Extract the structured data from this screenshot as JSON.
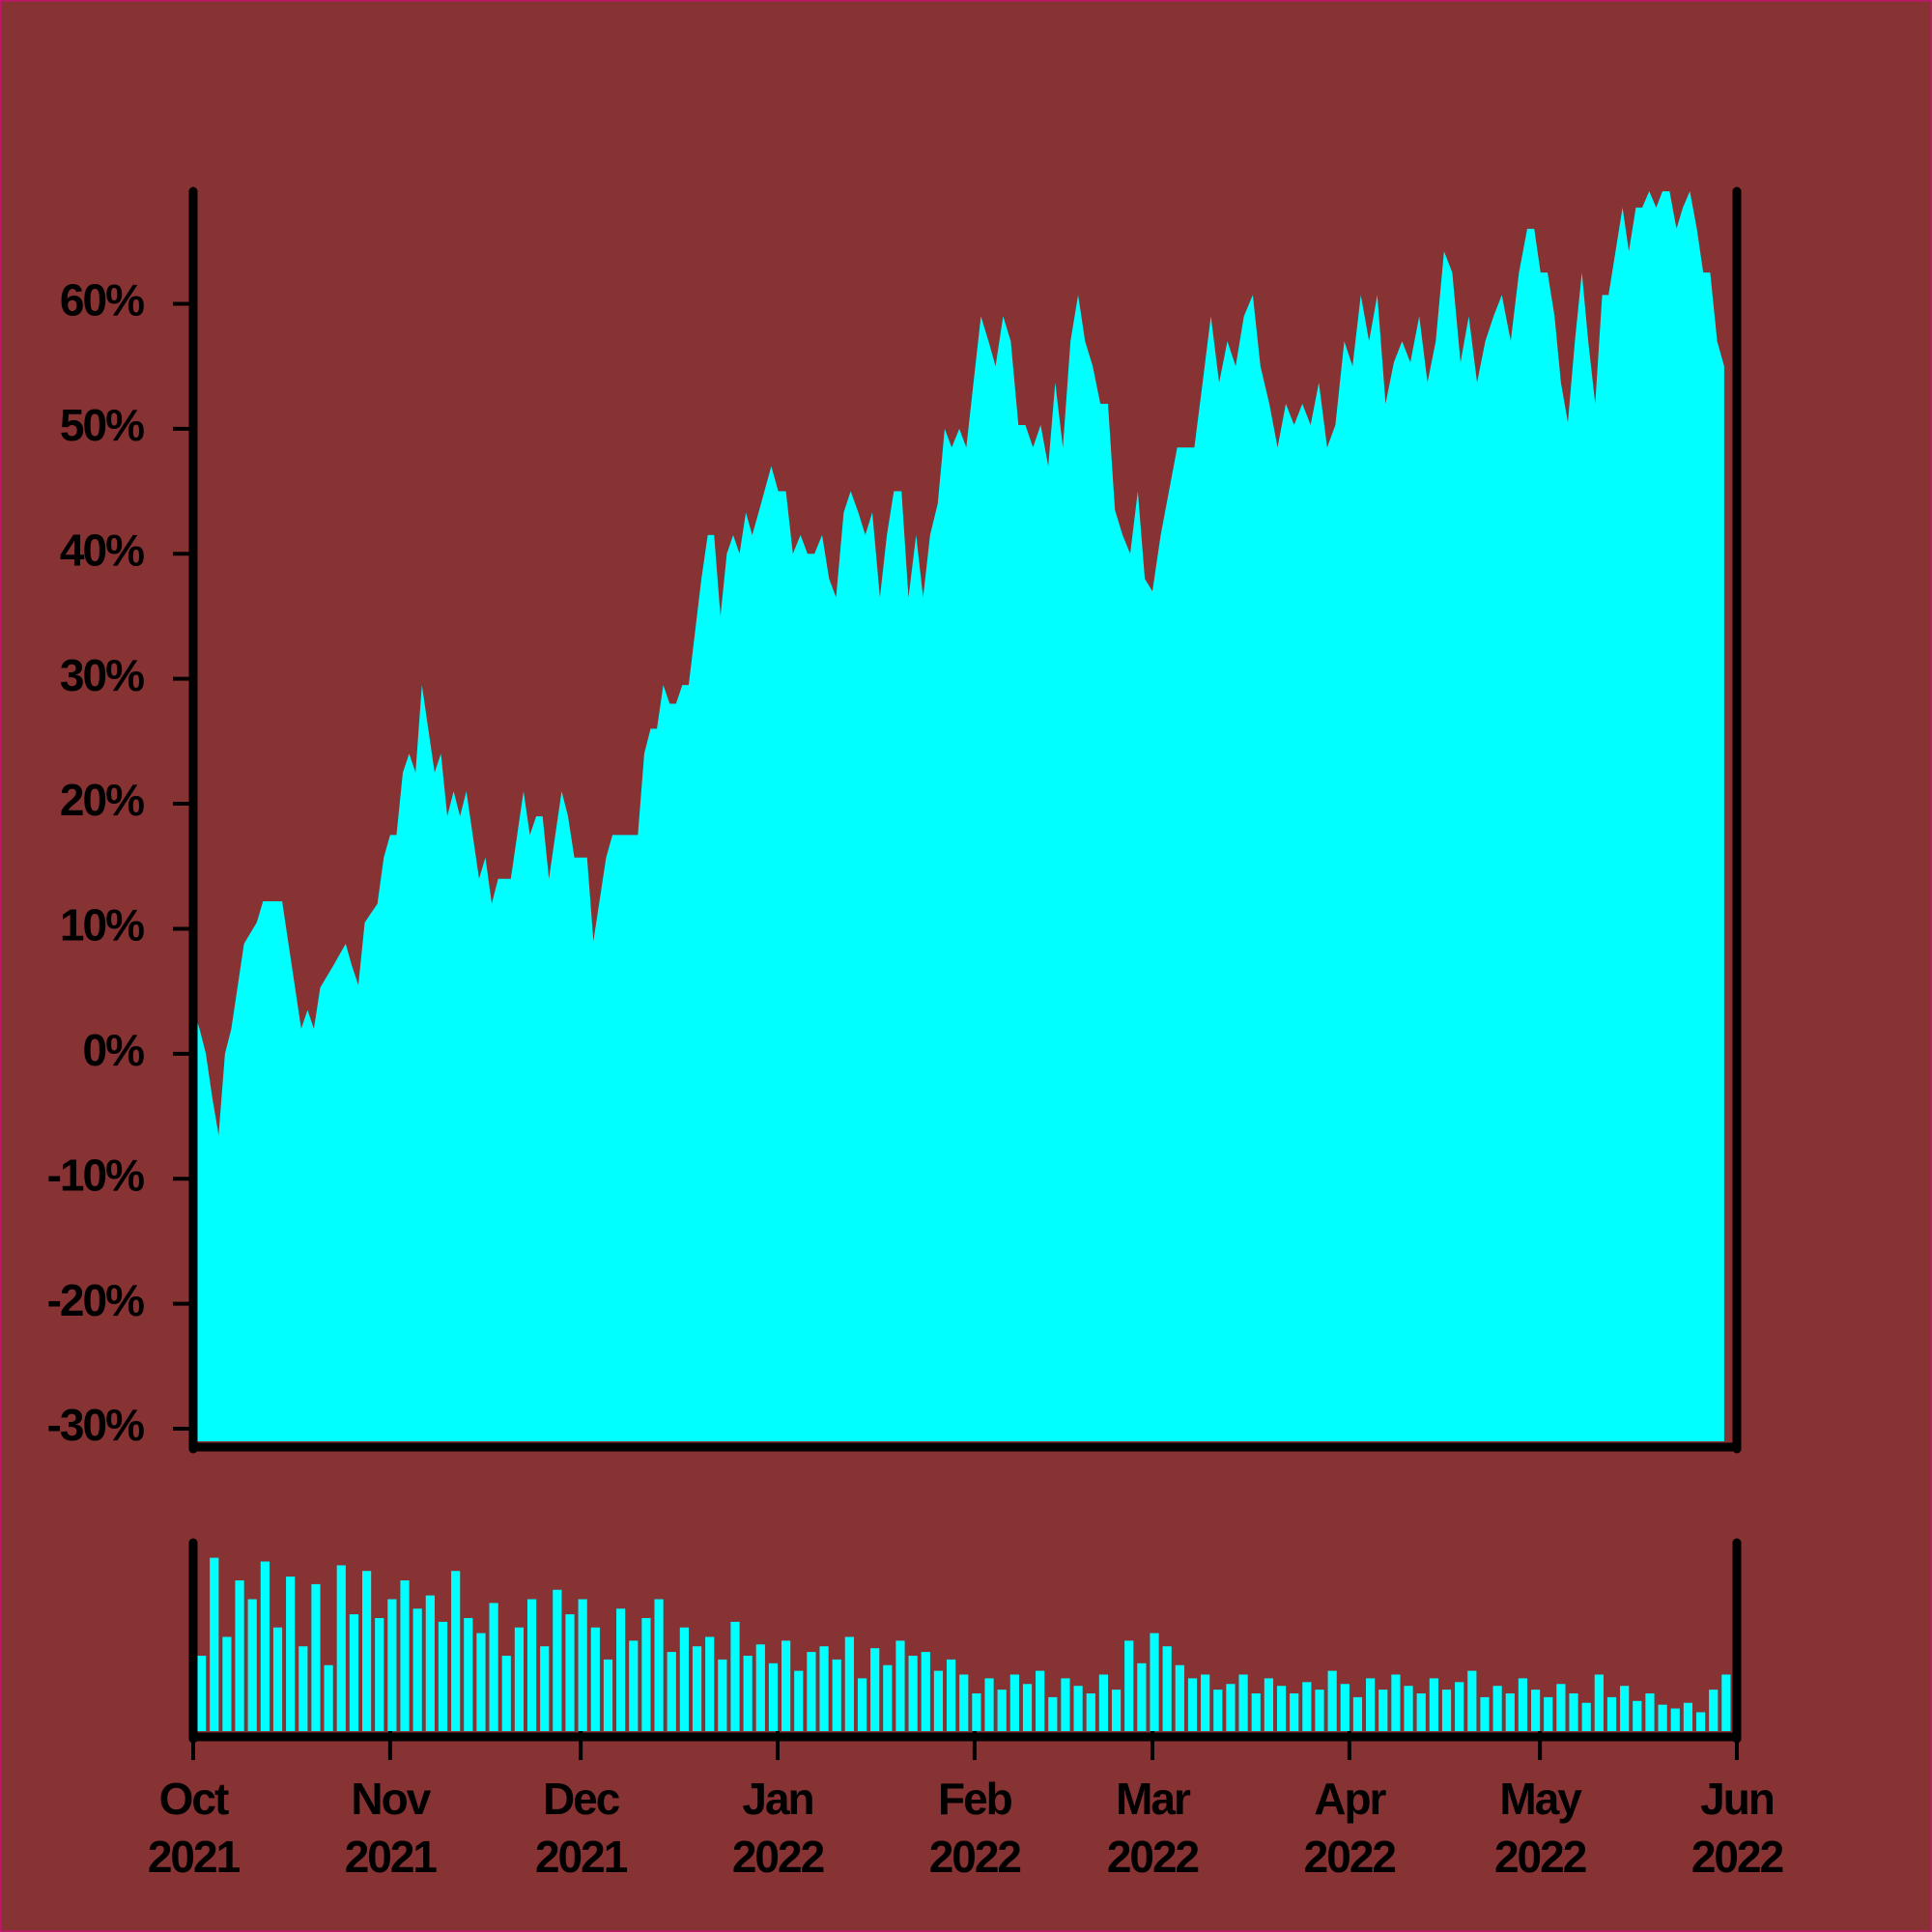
{
  "chart_data": [
    {
      "type": "area",
      "color": "#00ffff",
      "xlim": [
        0,
        243
      ],
      "ylim": [
        -31,
        69
      ],
      "yticks": [
        {
          "value": -30,
          "label": "-30%"
        },
        {
          "value": -20,
          "label": "-20%"
        },
        {
          "value": -10,
          "label": "-10%"
        },
        {
          "value": 0,
          "label": "0%"
        },
        {
          "value": 10,
          "label": "10%"
        },
        {
          "value": 20,
          "label": "20%"
        },
        {
          "value": 30,
          "label": "30%"
        },
        {
          "value": 40,
          "label": "40%"
        },
        {
          "value": 50,
          "label": "50%"
        },
        {
          "value": 60,
          "label": "60%"
        }
      ],
      "x": [
        0,
        1,
        2,
        3,
        4,
        5,
        6,
        8,
        10,
        11,
        14,
        15,
        17,
        18,
        19,
        20,
        22,
        24,
        25,
        26,
        27,
        29,
        30,
        31,
        32,
        33,
        34,
        35,
        36,
        37,
        38,
        39,
        40,
        41,
        42,
        43,
        44,
        45,
        46,
        47,
        48,
        50,
        52,
        53,
        54,
        55,
        56,
        57,
        58,
        59,
        60,
        62,
        63,
        65,
        66,
        68,
        70,
        71,
        72,
        73,
        74,
        75,
        76,
        77,
        78,
        80,
        81,
        82,
        83,
        84,
        85,
        86,
        87,
        88,
        89,
        91,
        92.1,
        93.3,
        94.4,
        95.6,
        96.7,
        97.8,
        99.0,
        100.1,
        101.2,
        102.4,
        103.5,
        104.7,
        105.8,
        106.9,
        108.1,
        109.2,
        110.3,
        111.5,
        112.6,
        113.8,
        114.9,
        116.0,
        117.2,
        118.3,
        119.4,
        120.6,
        121.7,
        122.9,
        124.0,
        125.2,
        126.3,
        127.5,
        128.7,
        129.9,
        131.0,
        132.2,
        133.4,
        134.6,
        135.7,
        136.9,
        138.1,
        139.3,
        140.4,
        141.6,
        142.8,
        144.0,
        145.1,
        146.3,
        147.5,
        148.7,
        149.8,
        151.0,
        152.3,
        154.9,
        157.6,
        158.9,
        160.2,
        161.5,
        162.8,
        164.1,
        165.4,
        166.8,
        168.0,
        169.4,
        170.7,
        172.0,
        173.3,
        174.6,
        175.9,
        177.2,
        178.5,
        179.8,
        181.2,
        182.5,
        183.8,
        185.1,
        186.4,
        187.7,
        189.0,
        190.3,
        191.6,
        193.0,
        194.3,
        195.6,
        196.9,
        198.2,
        199.5,
        200.8,
        202.1,
        203.4,
        204.7,
        206.0,
        207.4,
        208.7,
        210.0,
        211.1,
        212.1,
        213.2,
        214.3,
        215.3,
        216.4,
        217.5,
        218.6,
        219.6,
        220.7,
        221.8,
        222.8,
        223.9,
        225.0,
        226.0,
        227.1,
        228.1,
        229.2,
        230.3,
        231.3,
        232.4,
        233.5,
        234.5,
        235.6,
        236.7,
        237.7,
        238.8,
        239.9,
        241.0
      ],
      "values": [
        3.5,
        2,
        0,
        -3.5,
        -6.5,
        0,
        2,
        8.8,
        10.5,
        12.2,
        12.2,
        8.8,
        2,
        3.5,
        2,
        5.3,
        7,
        8.8,
        7,
        5.5,
        10.5,
        12,
        15.7,
        17.5,
        17.5,
        22.5,
        24,
        22.5,
        29.5,
        26,
        22.5,
        24,
        19,
        21,
        19,
        21,
        17.5,
        14,
        15.7,
        12,
        14,
        14,
        21,
        17.5,
        19,
        19,
        14,
        17.5,
        21,
        19,
        15.7,
        15.7,
        9,
        15.7,
        17.5,
        17.5,
        17.5,
        24,
        26,
        26,
        29.5,
        28,
        28,
        29.5,
        29.5,
        38,
        41.5,
        41.5,
        35,
        40,
        41.5,
        40,
        43.3,
        41.5,
        43.3,
        47,
        45,
        45,
        40,
        41.5,
        40,
        40,
        41.5,
        38,
        36.5,
        43.3,
        45,
        43.3,
        41.5,
        43.3,
        36.5,
        41.5,
        45,
        45,
        36.5,
        41.5,
        36.5,
        41.5,
        44,
        50,
        48.5,
        50,
        48.5,
        54,
        59,
        57,
        55,
        59,
        57,
        50.3,
        50.3,
        48.5,
        50.3,
        47,
        53.7,
        48.5,
        57,
        60.7,
        57,
        55,
        52,
        52,
        43.5,
        41.5,
        40,
        45,
        38,
        37,
        41.5,
        48.5,
        48.5,
        53.7,
        59,
        53.7,
        57,
        55,
        59,
        60.7,
        55,
        52,
        48.5,
        52,
        50.3,
        52,
        50.3,
        53.7,
        48.5,
        50.3,
        57,
        55,
        60.7,
        57,
        60.7,
        52,
        55.3,
        57,
        55.3,
        59,
        53.7,
        57,
        64.2,
        62.5,
        55.3,
        59,
        53.7,
        57,
        59,
        60.7,
        57,
        62.5,
        66,
        66,
        62.5,
        62.5,
        59,
        53.7,
        50.5,
        57,
        62.5,
        57,
        52,
        60.7,
        60.7,
        64.2,
        67.7,
        64.2,
        67.7,
        67.7,
        69,
        67.7,
        69,
        69,
        66,
        67.7,
        69,
        66,
        62.5,
        62.5,
        57,
        55
      ]
    },
    {
      "type": "bar",
      "color": "#00ffff",
      "xlim": [
        0,
        243
      ],
      "ylim": [
        0,
        100
      ],
      "xticks": [
        {
          "value": 0,
          "label": "Oct 2021"
        },
        {
          "value": 31,
          "label": "Nov 2021"
        },
        {
          "value": 61,
          "label": "Dec 2021"
        },
        {
          "value": 92,
          "label": "Jan 2022"
        },
        {
          "value": 123,
          "label": "Feb 2022"
        },
        {
          "value": 151,
          "label": "Mar 2022"
        },
        {
          "value": 182,
          "label": "Apr 2022"
        },
        {
          "value": 212,
          "label": "May 2022"
        },
        {
          "value": 243,
          "label": "Jun 2022"
        }
      ],
      "x": [
        0,
        2,
        4,
        6,
        8,
        10,
        12,
        14,
        16,
        18,
        20,
        22,
        24,
        26,
        28,
        30,
        32,
        34,
        36,
        38,
        40,
        42,
        44,
        46,
        48,
        50,
        52,
        54,
        56,
        58,
        60,
        62,
        64,
        66,
        68,
        70,
        72,
        74,
        76,
        78,
        80,
        82,
        84,
        86,
        88,
        90,
        92,
        94,
        96,
        98,
        100,
        102,
        104,
        106,
        108,
        110,
        112,
        114,
        116,
        118,
        120,
        122,
        124,
        126,
        128,
        130,
        132,
        134,
        136,
        138,
        140,
        142,
        144,
        146,
        148,
        150,
        152,
        154,
        156,
        158,
        160,
        162,
        164,
        166,
        168,
        170,
        172,
        174,
        176,
        178,
        180,
        182,
        184,
        186,
        188,
        190,
        192,
        194,
        196,
        198,
        200,
        202,
        204,
        206,
        208,
        210,
        212,
        214,
        216,
        218,
        220,
        222,
        224,
        226,
        228,
        230,
        232,
        234,
        236,
        238,
        240
      ],
      "values": [
        40,
        92,
        50,
        80,
        70,
        90,
        55,
        82,
        45,
        78,
        35,
        88,
        62,
        85,
        60,
        70,
        80,
        65,
        72,
        58,
        85,
        60,
        52,
        68,
        40,
        55,
        70,
        45,
        75,
        62,
        70,
        55,
        38,
        65,
        48,
        60,
        70,
        42,
        55,
        45,
        50,
        38,
        58,
        40,
        46,
        36,
        48,
        32,
        42,
        45,
        38,
        50,
        28,
        44,
        35,
        48,
        40,
        42,
        32,
        38,
        30,
        20,
        28,
        22,
        30,
        25,
        32,
        18,
        28,
        24,
        20,
        30,
        22,
        48,
        36,
        52,
        45,
        35,
        28,
        30,
        22,
        25,
        30,
        20,
        28,
        24,
        20,
        26,
        22,
        32,
        25,
        18,
        28,
        22,
        30,
        24,
        20,
        28,
        22,
        26,
        32,
        18,
        24,
        20,
        28,
        22,
        18,
        25,
        20,
        15,
        30,
        18,
        24,
        16,
        20,
        14,
        12,
        15,
        10,
        22,
        30
      ]
    }
  ]
}
